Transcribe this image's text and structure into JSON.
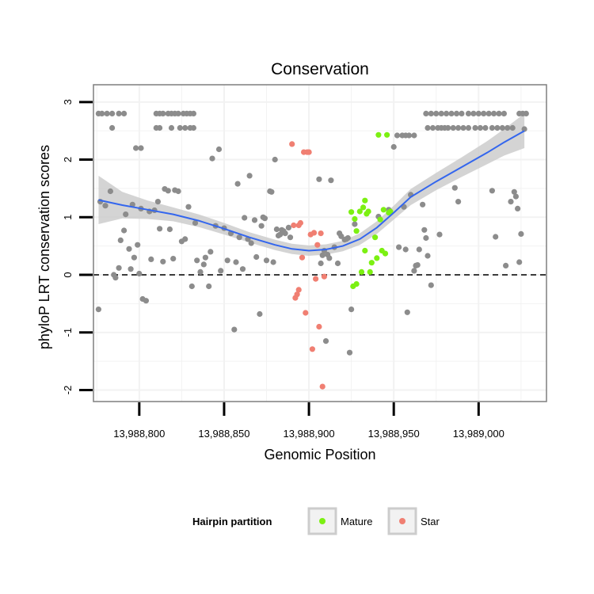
{
  "chart_data": {
    "type": "scatter",
    "title": "Conservation",
    "xlabel": "Genomic Position",
    "ylabel": "phyloP LRT conservation scores",
    "xlim": [
      13988773,
      13989040
    ],
    "ylim": [
      -2.2,
      3.3
    ],
    "x_ticks": [
      13988800,
      13988850,
      13988900,
      13988950,
      13989000
    ],
    "x_tick_labels": [
      "13,988,800",
      "13,988,850",
      "13,988,900",
      "13,988,950",
      "13,989,000"
    ],
    "y_ticks": [
      -2,
      -1,
      0,
      1,
      2,
      3
    ],
    "y_tick_labels": [
      "-2",
      "-1",
      "0",
      "1",
      "2",
      "3"
    ],
    "grid": true,
    "reference_line": {
      "y": 0,
      "style": "dashed",
      "color": "#000000"
    },
    "legend": {
      "title": "Hairpin partition",
      "placement": "bottom",
      "entries": [
        {
          "label": "Mature",
          "color": "#7cf012"
        },
        {
          "label": "Star",
          "color": "#f07f72"
        }
      ]
    },
    "colors": {
      "background_point": "#8c8c8c",
      "mature": "#7cf012",
      "star": "#f07f72",
      "smooth_line": "#3366ee",
      "confidence_band": "#cccccc",
      "panel_border": "#7f7f7f",
      "grid": "#f2f2f2"
    },
    "smooth": {
      "x": [
        13988776,
        13988790,
        13988805,
        13988820,
        13988835,
        13988850,
        13988865,
        13988880,
        13988890,
        13988900,
        13988910,
        13988920,
        13988930,
        13988940,
        13988950,
        13988960,
        13988975,
        13988990,
        13989005,
        13989015,
        13989027
      ],
      "y": [
        1.3,
        1.21,
        1.13,
        1.05,
        0.94,
        0.8,
        0.65,
        0.52,
        0.45,
        0.42,
        0.44,
        0.5,
        0.62,
        0.82,
        1.08,
        1.35,
        1.62,
        1.87,
        2.12,
        2.3,
        2.5
      ],
      "lower": [
        0.88,
        0.98,
        0.97,
        0.93,
        0.83,
        0.7,
        0.56,
        0.43,
        0.36,
        0.33,
        0.35,
        0.41,
        0.52,
        0.71,
        0.96,
        1.21,
        1.47,
        1.7,
        1.92,
        2.07,
        2.2
      ],
      "upper": [
        1.72,
        1.44,
        1.29,
        1.17,
        1.05,
        0.9,
        0.74,
        0.61,
        0.54,
        0.51,
        0.53,
        0.59,
        0.72,
        0.93,
        1.2,
        1.49,
        1.77,
        2.04,
        2.32,
        2.53,
        2.8
      ]
    },
    "series": [
      {
        "group": "other",
        "points": [
          [
            13988776,
            -0.6
          ],
          [
            13988777,
            1.27
          ],
          [
            13988780,
            1.2
          ],
          [
            13988783,
            1.45
          ],
          [
            13988785,
            0.0
          ],
          [
            13988786,
            -0.05
          ],
          [
            13988788,
            0.12
          ],
          [
            13988789,
            0.6
          ],
          [
            13988791,
            0.77
          ],
          [
            13988792,
            1.05
          ],
          [
            13988794,
            0.45
          ],
          [
            13988795,
            0.1
          ],
          [
            13988796,
            1.22
          ],
          [
            13988797,
            0.3
          ],
          [
            13988799,
            0.52
          ],
          [
            13988800,
            0.02
          ],
          [
            13988801,
            1.15
          ],
          [
            13988802,
            -0.42
          ],
          [
            13988804,
            -0.45
          ],
          [
            13988806,
            1.1
          ],
          [
            13988807,
            0.27
          ],
          [
            13988809,
            1.12
          ],
          [
            13988811,
            1.27
          ],
          [
            13988812,
            0.8
          ],
          [
            13988814,
            0.23
          ],
          [
            13988815,
            1.49
          ],
          [
            13988817,
            1.46
          ],
          [
            13988818,
            0.79
          ],
          [
            13988820,
            0.28
          ],
          [
            13988821,
            1.47
          ],
          [
            13988823,
            1.45
          ],
          [
            13988825,
            0.58
          ],
          [
            13988827,
            0.62
          ],
          [
            13988829,
            1.18
          ],
          [
            13988831,
            -0.2
          ],
          [
            13988833,
            0.9
          ],
          [
            13988834,
            0.25
          ],
          [
            13988836,
            0.05
          ],
          [
            13988838,
            0.18
          ],
          [
            13988839,
            0.3
          ],
          [
            13988841,
            -0.2
          ],
          [
            13988842,
            0.4
          ],
          [
            13988843,
            2.02
          ],
          [
            13988845,
            0.85
          ],
          [
            13988847,
            2.18
          ],
          [
            13988848,
            0.07
          ],
          [
            13988850,
            0.81
          ],
          [
            13988852,
            0.25
          ],
          [
            13988854,
            0.72
          ],
          [
            13988856,
            -0.95
          ],
          [
            13988857,
            0.22
          ],
          [
            13988858,
            1.58
          ],
          [
            13988859,
            0.65
          ],
          [
            13988861,
            0.1
          ],
          [
            13988862,
            0.99
          ],
          [
            13988864,
            0.62
          ],
          [
            13988865,
            1.72
          ],
          [
            13988866,
            0.55
          ],
          [
            13988868,
            0.95
          ],
          [
            13988869,
            0.31
          ],
          [
            13988871,
            -0.68
          ],
          [
            13988872,
            0.85
          ],
          [
            13988873,
            1.0
          ],
          [
            13988874,
            0.98
          ],
          [
            13988875,
            0.25
          ],
          [
            13988877,
            1.45
          ],
          [
            13988878,
            1.44
          ],
          [
            13988879,
            0.22
          ],
          [
            13988880,
            2.0
          ],
          [
            13988881,
            0.79
          ],
          [
            13988882,
            0.68
          ],
          [
            13988883,
            0.7
          ],
          [
            13988884,
            0.78
          ],
          [
            13988885,
            0.76
          ],
          [
            13988886,
            0.72
          ],
          [
            13988888,
            0.82
          ],
          [
            13988889,
            0.65
          ],
          [
            13988906,
            1.66
          ],
          [
            13988907,
            0.2
          ],
          [
            13988908,
            0.34
          ],
          [
            13988909,
            0.42
          ],
          [
            13988910,
            -1.15
          ],
          [
            13988911,
            0.35
          ],
          [
            13988912,
            0.29
          ],
          [
            13988913,
            1.64
          ],
          [
            13988915,
            0.48
          ],
          [
            13988917,
            0.2
          ],
          [
            13988918,
            0.72
          ],
          [
            13988919,
            0.67
          ],
          [
            13988921,
            0.61
          ],
          [
            13988922,
            0.62
          ],
          [
            13988923,
            0.64
          ],
          [
            13988924,
            -1.35
          ],
          [
            13988925,
            -0.6
          ],
          [
            13988927,
            0.88
          ],
          [
            13988941,
            1.01
          ],
          [
            13988947,
            1.13
          ],
          [
            13988950,
            2.22
          ],
          [
            13988953,
            0.48
          ],
          [
            13988956,
            1.18
          ],
          [
            13988957,
            0.44
          ],
          [
            13988958,
            -0.65
          ],
          [
            13988960,
            1.39
          ],
          [
            13988962,
            0.07
          ],
          [
            13988963,
            0.16
          ],
          [
            13988964,
            0.17
          ],
          [
            13988965,
            0.44
          ],
          [
            13988967,
            1.22
          ],
          [
            13988968,
            0.78
          ],
          [
            13988969,
            0.64
          ],
          [
            13988970,
            0.33
          ],
          [
            13988972,
            -0.18
          ],
          [
            13988977,
            0.7
          ],
          [
            13988986,
            1.51
          ],
          [
            13988988,
            1.27
          ],
          [
            13989008,
            1.46
          ],
          [
            13989010,
            0.66
          ],
          [
            13989016,
            0.16
          ],
          [
            13989019,
            1.27
          ],
          [
            13989021,
            1.44
          ],
          [
            13989022,
            1.36
          ],
          [
            13989023,
            1.15
          ],
          [
            13989024,
            0.22
          ],
          [
            13989025,
            0.71
          ],
          [
            13989027,
            2.53
          ]
        ]
      },
      {
        "group": "other-top-rows",
        "points": [
          [
            13988784,
            2.55
          ],
          [
            13988810,
            2.55
          ],
          [
            13988812,
            2.55
          ],
          [
            13988819,
            2.55
          ],
          [
            13988824,
            2.55
          ],
          [
            13988827,
            2.55
          ],
          [
            13988830,
            2.55
          ],
          [
            13988832,
            2.55
          ],
          [
            13988952,
            2.42
          ],
          [
            13988955,
            2.42
          ],
          [
            13988957,
            2.42
          ],
          [
            13988959,
            2.42
          ],
          [
            13988962,
            2.42
          ],
          [
            13988970,
            2.55
          ],
          [
            13988973,
            2.55
          ],
          [
            13988976,
            2.55
          ],
          [
            13988978,
            2.55
          ],
          [
            13988980,
            2.55
          ],
          [
            13988982,
            2.55
          ],
          [
            13988985,
            2.55
          ],
          [
            13988988,
            2.55
          ],
          [
            13988991,
            2.55
          ],
          [
            13988994,
            2.55
          ],
          [
            13988998,
            2.55
          ],
          [
            13989001,
            2.55
          ],
          [
            13989004,
            2.55
          ],
          [
            13989008,
            2.55
          ],
          [
            13989011,
            2.55
          ],
          [
            13989014,
            2.55
          ],
          [
            13989017,
            2.55
          ],
          [
            13989020,
            2.55
          ],
          [
            13988776,
            2.8
          ],
          [
            13988778,
            2.8
          ],
          [
            13988781,
            2.8
          ],
          [
            13988784,
            2.8
          ],
          [
            13988788,
            2.8
          ],
          [
            13988791,
            2.8
          ],
          [
            13988810,
            2.8
          ],
          [
            13988812,
            2.8
          ],
          [
            13988814,
            2.8
          ],
          [
            13988817,
            2.8
          ],
          [
            13988819,
            2.8
          ],
          [
            13988821,
            2.8
          ],
          [
            13988823,
            2.8
          ],
          [
            13988826,
            2.8
          ],
          [
            13988828,
            2.8
          ],
          [
            13988830,
            2.8
          ],
          [
            13988832,
            2.8
          ],
          [
            13988969,
            2.8
          ],
          [
            13988972,
            2.8
          ],
          [
            13988975,
            2.8
          ],
          [
            13988978,
            2.8
          ],
          [
            13988981,
            2.8
          ],
          [
            13988984,
            2.8
          ],
          [
            13988987,
            2.8
          ],
          [
            13988990,
            2.8
          ],
          [
            13988994,
            2.8
          ],
          [
            13988997,
            2.8
          ],
          [
            13989000,
            2.8
          ],
          [
            13989003,
            2.8
          ],
          [
            13989006,
            2.8
          ],
          [
            13989009,
            2.8
          ],
          [
            13989012,
            2.8
          ],
          [
            13989015,
            2.8
          ],
          [
            13989024,
            2.8
          ],
          [
            13989026,
            2.8
          ],
          [
            13989028,
            2.8
          ],
          [
            13988798,
            2.2
          ],
          [
            13988801,
            2.2
          ]
        ]
      },
      {
        "group": "Mature",
        "points": [
          [
            13988925,
            1.09
          ],
          [
            13988926,
            -0.2
          ],
          [
            13988927,
            0.97
          ],
          [
            13988928,
            -0.16
          ],
          [
            13988928,
            0.76
          ],
          [
            13988930,
            1.1
          ],
          [
            13988931,
            0.05
          ],
          [
            13988932,
            1.17
          ],
          [
            13988933,
            1.29
          ],
          [
            13988933,
            0.42
          ],
          [
            13988934,
            1.06
          ],
          [
            13988935,
            1.1
          ],
          [
            13988936,
            0.05
          ],
          [
            13988937,
            0.21
          ],
          [
            13988939,
            0.65
          ],
          [
            13988940,
            0.29
          ],
          [
            13988941,
            2.43
          ],
          [
            13988942,
            0.96
          ],
          [
            13988943,
            0.42
          ],
          [
            13988944,
            1.13
          ],
          [
            13988945,
            0.37
          ],
          [
            13988946,
            2.43
          ],
          [
            13988947,
            1.08
          ],
          [
            13988948,
            1.1
          ]
        ]
      },
      {
        "group": "Star",
        "points": [
          [
            13988890,
            2.27
          ],
          [
            13988891,
            0.86
          ],
          [
            13988892,
            -0.4
          ],
          [
            13988893,
            -0.34
          ],
          [
            13988894,
            -0.26
          ],
          [
            13988894,
            0.86
          ],
          [
            13988895,
            0.9
          ],
          [
            13988896,
            0.3
          ],
          [
            13988897,
            2.13
          ],
          [
            13988898,
            -0.66
          ],
          [
            13988899,
            2.13
          ],
          [
            13988900,
            2.13
          ],
          [
            13988901,
            0.7
          ],
          [
            13988902,
            -1.29
          ],
          [
            13988903,
            0.73
          ],
          [
            13988904,
            -0.07
          ],
          [
            13988905,
            0.52
          ],
          [
            13988906,
            -0.9
          ],
          [
            13988907,
            0.72
          ],
          [
            13988908,
            -1.94
          ],
          [
            13988909,
            -0.03
          ]
        ]
      }
    ]
  }
}
